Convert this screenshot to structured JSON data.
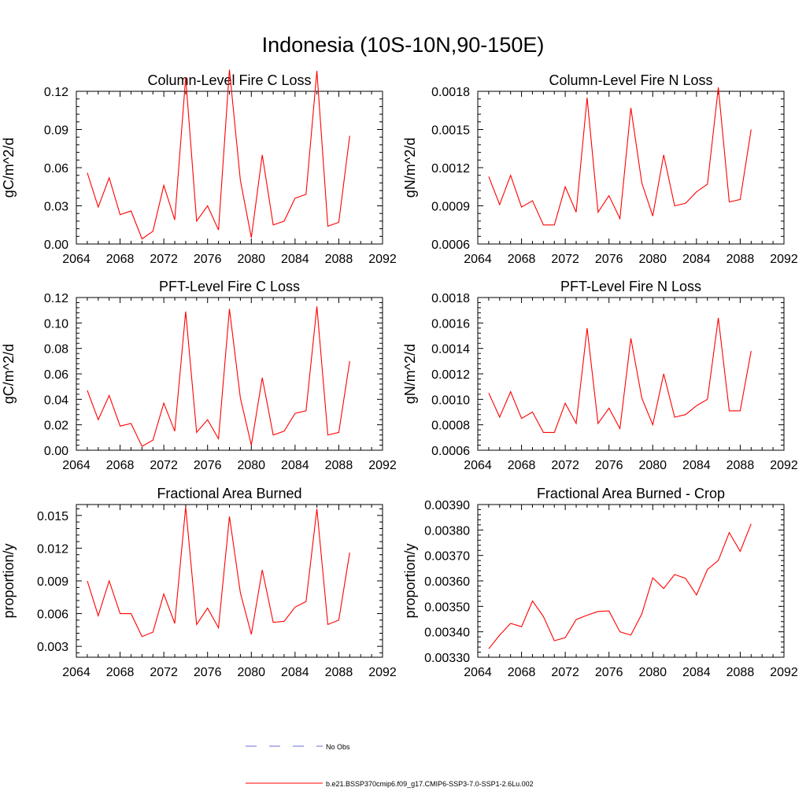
{
  "figure_title": "Indonesia (10S-10N,90-150E)",
  "colors": {
    "series": "#ff0000",
    "obs": "#6b6bcf",
    "axis": "#000000"
  },
  "legend": {
    "items": [
      {
        "label": "No Obs",
        "style": "dashed",
        "color": "#6b6bcf"
      },
      {
        "label": "b.e21.BSSP370cmip6.f09_g17.CMIP6-SSP3-7.0-SSP1-2.6Lu.002",
        "style": "solid",
        "color": "#ff0000"
      }
    ]
  },
  "chart_data": [
    {
      "type": "line",
      "title": "Column-Level Fire C Loss",
      "ylabel": "gC/m^2/d",
      "xlim": [
        2064,
        2092
      ],
      "ylim": [
        0.0,
        0.12
      ],
      "xticks": [
        2064,
        2068,
        2072,
        2076,
        2080,
        2084,
        2088,
        2092
      ],
      "yticks": [
        "0.00",
        "0.03",
        "0.06",
        "0.09",
        "0.12"
      ],
      "grid": false,
      "series": [
        {
          "name": "b.e21.BSSP370cmip6.f09_g17.CMIP6-SSP3-7.0-SSP1-2.6Lu.002",
          "x": [
            2065,
            2066,
            2067,
            2068,
            2069,
            2070,
            2071,
            2072,
            2073,
            2074,
            2075,
            2076,
            2077,
            2078,
            2079,
            2080,
            2081,
            2082,
            2083,
            2084,
            2085,
            2086,
            2087,
            2088,
            2089
          ],
          "y": [
            0.056,
            0.029,
            0.052,
            0.023,
            0.026,
            0.004,
            0.01,
            0.046,
            0.019,
            0.131,
            0.018,
            0.03,
            0.011,
            0.137,
            0.05,
            0.005,
            0.07,
            0.015,
            0.018,
            0.036,
            0.039,
            0.136,
            0.014,
            0.017,
            0.085
          ]
        }
      ]
    },
    {
      "type": "line",
      "title": "Column-Level Fire N Loss",
      "ylabel": "gN/m^2/d",
      "xlim": [
        2064,
        2092
      ],
      "ylim": [
        0.0006,
        0.0018
      ],
      "xticks": [
        2064,
        2068,
        2072,
        2076,
        2080,
        2084,
        2088,
        2092
      ],
      "yticks": [
        "0.0006",
        "0.0009",
        "0.0012",
        "0.0015",
        "0.0018"
      ],
      "grid": false,
      "series": [
        {
          "name": "b.e21.BSSP370cmip6.f09_g17.CMIP6-SSP3-7.0-SSP1-2.6Lu.002",
          "x": [
            2065,
            2066,
            2067,
            2068,
            2069,
            2070,
            2071,
            2072,
            2073,
            2074,
            2075,
            2076,
            2077,
            2078,
            2079,
            2080,
            2081,
            2082,
            2083,
            2084,
            2085,
            2086,
            2087,
            2088,
            2089
          ],
          "y": [
            0.00113,
            0.00091,
            0.00114,
            0.00089,
            0.00094,
            0.00075,
            0.00075,
            0.00105,
            0.00085,
            0.00175,
            0.00085,
            0.00098,
            0.0008,
            0.00167,
            0.00108,
            0.00082,
            0.0013,
            0.0009,
            0.00092,
            0.00101,
            0.00107,
            0.00183,
            0.00093,
            0.00095,
            0.0015
          ]
        }
      ]
    },
    {
      "type": "line",
      "title": "PFT-Level Fire C Loss",
      "ylabel": "gC/m^2/d",
      "xlim": [
        2064,
        2092
      ],
      "ylim": [
        0.0,
        0.12
      ],
      "xticks": [
        2064,
        2068,
        2072,
        2076,
        2080,
        2084,
        2088,
        2092
      ],
      "yticks": [
        "0.00",
        "0.02",
        "0.04",
        "0.06",
        "0.08",
        "0.10",
        "0.12"
      ],
      "grid": false,
      "series": [
        {
          "name": "b.e21.BSSP370cmip6.f09_g17.CMIP6-SSP3-7.0-SSP1-2.6Lu.002",
          "x": [
            2065,
            2066,
            2067,
            2068,
            2069,
            2070,
            2071,
            2072,
            2073,
            2074,
            2075,
            2076,
            2077,
            2078,
            2079,
            2080,
            2081,
            2082,
            2083,
            2084,
            2085,
            2086,
            2087,
            2088,
            2089
          ],
          "y": [
            0.047,
            0.024,
            0.043,
            0.019,
            0.021,
            0.003,
            0.008,
            0.037,
            0.015,
            0.109,
            0.014,
            0.024,
            0.009,
            0.111,
            0.041,
            0.004,
            0.057,
            0.012,
            0.015,
            0.029,
            0.031,
            0.113,
            0.012,
            0.014,
            0.07
          ]
        }
      ]
    },
    {
      "type": "line",
      "title": "PFT-Level Fire N Loss",
      "ylabel": "gN/m^2/d",
      "xlim": [
        2064,
        2092
      ],
      "ylim": [
        0.0006,
        0.0018
      ],
      "xticks": [
        2064,
        2068,
        2072,
        2076,
        2080,
        2084,
        2088,
        2092
      ],
      "yticks": [
        "0.0006",
        "0.0008",
        "0.0010",
        "0.0012",
        "0.0014",
        "0.0016",
        "0.0018"
      ],
      "grid": false,
      "series": [
        {
          "name": "b.e21.BSSP370cmip6.f09_g17.CMIP6-SSP3-7.0-SSP1-2.6Lu.002",
          "x": [
            2065,
            2066,
            2067,
            2068,
            2069,
            2070,
            2071,
            2072,
            2073,
            2074,
            2075,
            2076,
            2077,
            2078,
            2079,
            2080,
            2081,
            2082,
            2083,
            2084,
            2085,
            2086,
            2087,
            2088,
            2089
          ],
          "y": [
            0.00105,
            0.00086,
            0.00106,
            0.00085,
            0.0009,
            0.00074,
            0.00074,
            0.00097,
            0.00081,
            0.00156,
            0.00081,
            0.00093,
            0.00077,
            0.00148,
            0.00101,
            0.0008,
            0.0012,
            0.00086,
            0.00088,
            0.00095,
            0.001,
            0.00164,
            0.00091,
            0.00091,
            0.00138
          ]
        }
      ]
    },
    {
      "type": "line",
      "title": "Fractional Area Burned",
      "ylabel": "proportion/y",
      "xlim": [
        2064,
        2092
      ],
      "ylim": [
        0.002,
        0.016
      ],
      "xticks": [
        2064,
        2068,
        2072,
        2076,
        2080,
        2084,
        2088,
        2092
      ],
      "yticks": [
        "0.003",
        "0.006",
        "0.009",
        "0.012",
        "0.015"
      ],
      "grid": false,
      "series": [
        {
          "name": "b.e21.BSSP370cmip6.f09_g17.CMIP6-SSP3-7.0-SSP1-2.6Lu.002",
          "x": [
            2065,
            2066,
            2067,
            2068,
            2069,
            2070,
            2071,
            2072,
            2073,
            2074,
            2075,
            2076,
            2077,
            2078,
            2079,
            2080,
            2081,
            2082,
            2083,
            2084,
            2085,
            2086,
            2087,
            2088,
            2089
          ],
          "y": [
            0.009,
            0.0058,
            0.009,
            0.006,
            0.006,
            0.0039,
            0.0043,
            0.0078,
            0.0051,
            0.0158,
            0.005,
            0.0065,
            0.0047,
            0.0149,
            0.0079,
            0.0041,
            0.01,
            0.0052,
            0.0053,
            0.0066,
            0.0071,
            0.0156,
            0.005,
            0.0054,
            0.0116
          ]
        }
      ]
    },
    {
      "type": "line",
      "title": "Fractional Area Burned - Crop",
      "ylabel": "proportion/y",
      "xlim": [
        2064,
        2092
      ],
      "ylim": [
        0.0033,
        0.0039
      ],
      "xticks": [
        2064,
        2068,
        2072,
        2076,
        2080,
        2084,
        2088,
        2092
      ],
      "yticks": [
        "0.00330",
        "0.00340",
        "0.00350",
        "0.00360",
        "0.00370",
        "0.00380",
        "0.00390"
      ],
      "grid": false,
      "series": [
        {
          "name": "b.e21.BSSP370cmip6.f09_g17.CMIP6-SSP3-7.0-SSP1-2.6Lu.002",
          "x": [
            2065,
            2066,
            2067,
            2068,
            2069,
            2070,
            2071,
            2072,
            2073,
            2074,
            2075,
            2076,
            2077,
            2078,
            2079,
            2080,
            2081,
            2082,
            2083,
            2084,
            2085,
            2086,
            2087,
            2088,
            2089
          ],
          "y": [
            0.003333,
            0.003387,
            0.003433,
            0.00342,
            0.003521,
            0.00346,
            0.003365,
            0.003377,
            0.003448,
            0.003465,
            0.00348,
            0.003482,
            0.0034,
            0.003387,
            0.00347,
            0.003612,
            0.00357,
            0.003625,
            0.00361,
            0.003545,
            0.003645,
            0.00368,
            0.00379,
            0.003716,
            0.003824
          ]
        }
      ]
    }
  ]
}
